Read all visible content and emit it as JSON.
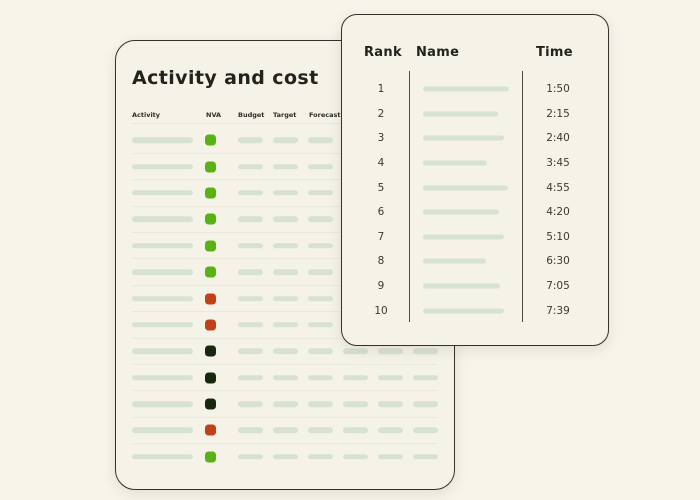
{
  "colors": {
    "page_bg": "#f7f4ea",
    "card_bg": "#f5f2e7",
    "card_border": "#32312b",
    "bar": "#d8e2d2",
    "row_divider": "#ebe8dc",
    "column_line": "#4c4b40",
    "dot_green": "#58b214",
    "dot_red": "#c04018",
    "dot_dark": "#16290f"
  },
  "activity_card": {
    "title": "Activity and cost",
    "headers": [
      "Activity",
      "NVA",
      "Budget",
      "Target",
      "Forecast"
    ],
    "small_bar_columns": 6,
    "rows": [
      {
        "status": "green"
      },
      {
        "status": "green"
      },
      {
        "status": "green"
      },
      {
        "status": "green"
      },
      {
        "status": "green"
      },
      {
        "status": "green"
      },
      {
        "status": "red"
      },
      {
        "status": "red"
      },
      {
        "status": "dark"
      },
      {
        "status": "dark"
      },
      {
        "status": "dark"
      },
      {
        "status": "red"
      },
      {
        "status": "green"
      }
    ]
  },
  "leaderboard_card": {
    "headers": {
      "rank": "Rank",
      "name": "Name",
      "time": "Time"
    },
    "rows": [
      {
        "rank": "1",
        "time": "1:50",
        "name_bar_width": 86
      },
      {
        "rank": "2",
        "time": "2:15",
        "name_bar_width": 75
      },
      {
        "rank": "3",
        "time": "2:40",
        "name_bar_width": 81
      },
      {
        "rank": "4",
        "time": "3:45",
        "name_bar_width": 64
      },
      {
        "rank": "5",
        "time": "4:55",
        "name_bar_width": 85
      },
      {
        "rank": "6",
        "time": "4:20",
        "name_bar_width": 76
      },
      {
        "rank": "7",
        "time": "5:10",
        "name_bar_width": 81
      },
      {
        "rank": "8",
        "time": "6:30",
        "name_bar_width": 63
      },
      {
        "rank": "9",
        "time": "7:05",
        "name_bar_width": 77
      },
      {
        "rank": "10",
        "time": "7:39",
        "name_bar_width": 81
      }
    ]
  }
}
